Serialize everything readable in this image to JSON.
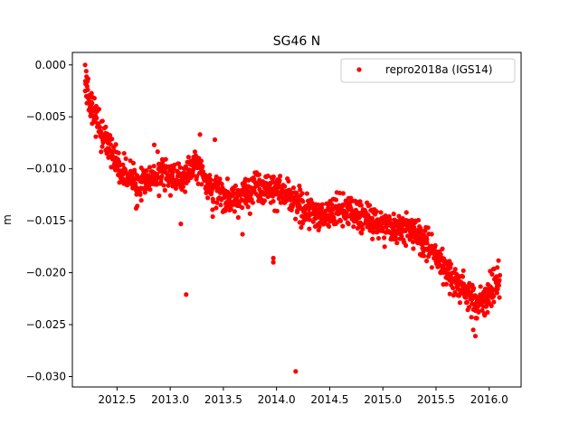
{
  "chart_data": {
    "type": "scatter",
    "title": "SG46 N",
    "xlabel": "",
    "ylabel": "m",
    "xlim": [
      2012.08,
      2016.3
    ],
    "ylim": [
      -0.031,
      0.0012
    ],
    "xticks": [
      2012.5,
      2013.0,
      2013.5,
      2014.0,
      2014.5,
      2015.0,
      2015.5,
      2016.0
    ],
    "xtick_labels": [
      "2012.5",
      "2013.0",
      "2013.5",
      "2014.0",
      "2014.5",
      "2015.0",
      "2015.5",
      "2016.0"
    ],
    "yticks": [
      0.0,
      -0.005,
      -0.01,
      -0.015,
      -0.02,
      -0.025,
      -0.03
    ],
    "ytick_labels": [
      "0.000",
      "−0.005",
      "−0.010",
      "−0.015",
      "−0.020",
      "−0.025",
      "−0.030"
    ],
    "grid": false,
    "legend_position": "upper right",
    "series": [
      {
        "name": "repro2018a (IGS14)",
        "color": "#ff0000",
        "marker": "circle",
        "trend_knots": {
          "x": [
            2012.2,
            2012.25,
            2012.35,
            2012.45,
            2012.55,
            2012.7,
            2012.9,
            2013.1,
            2013.25,
            2013.4,
            2013.6,
            2013.8,
            2014.0,
            2014.2,
            2014.4,
            2014.6,
            2014.8,
            2015.0,
            2015.2,
            2015.4,
            2015.55,
            2015.7,
            2015.8,
            2015.9,
            2016.0,
            2016.1
          ],
          "y": [
            -0.0015,
            -0.004,
            -0.006,
            -0.0085,
            -0.0105,
            -0.0115,
            -0.0105,
            -0.011,
            -0.0095,
            -0.012,
            -0.013,
            -0.0115,
            -0.012,
            -0.0135,
            -0.0145,
            -0.014,
            -0.0145,
            -0.0155,
            -0.0155,
            -0.017,
            -0.019,
            -0.021,
            -0.022,
            -0.023,
            -0.022,
            -0.0205
          ]
        },
        "scatter_spread": 0.0013,
        "point_count": 1400,
        "outliers": [
          {
            "x": 2012.2,
            "y": 0.0
          },
          {
            "x": 2012.21,
            "y": -0.0006
          },
          {
            "x": 2013.15,
            "y": -0.0221
          },
          {
            "x": 2013.1,
            "y": -0.0153
          },
          {
            "x": 2013.4,
            "y": -0.0146
          },
          {
            "x": 2013.28,
            "y": -0.0067
          },
          {
            "x": 2013.42,
            "y": -0.0072
          },
          {
            "x": 2013.68,
            "y": -0.0163
          },
          {
            "x": 2013.97,
            "y": -0.0186
          },
          {
            "x": 2013.97,
            "y": -0.019
          },
          {
            "x": 2014.18,
            "y": -0.0295
          },
          {
            "x": 2015.87,
            "y": -0.0261
          },
          {
            "x": 2015.85,
            "y": -0.0255
          },
          {
            "x": 2012.68,
            "y": -0.0138
          },
          {
            "x": 2012.85,
            "y": -0.0077
          }
        ]
      }
    ]
  }
}
